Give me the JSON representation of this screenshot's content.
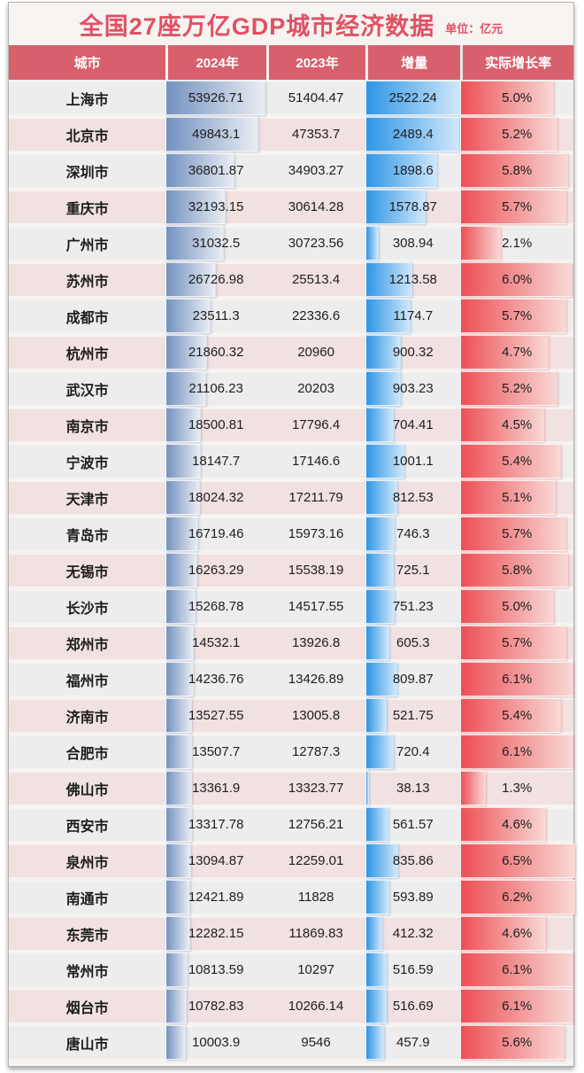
{
  "chart_data": {
    "type": "table",
    "title": "全国27座万亿GDP城市经济数据",
    "unit": "单位：亿元",
    "columns": [
      "城市",
      "2024年",
      "2023年",
      "增量",
      "实际增长率"
    ],
    "rows": [
      {
        "city": "上海市",
        "y2024": "53926.71",
        "y2023": "51404.47",
        "delta": "2522.24",
        "growth": "5.0%"
      },
      {
        "city": "北京市",
        "y2024": "49843.1",
        "y2023": "47353.7",
        "delta": "2489.4",
        "growth": "5.2%"
      },
      {
        "city": "深圳市",
        "y2024": "36801.87",
        "y2023": "34903.27",
        "delta": "1898.6",
        "growth": "5.8%"
      },
      {
        "city": "重庆市",
        "y2024": "32193.15",
        "y2023": "30614.28",
        "delta": "1578.87",
        "growth": "5.7%"
      },
      {
        "city": "广州市",
        "y2024": "31032.5",
        "y2023": "30723.56",
        "delta": "308.94",
        "growth": "2.1%"
      },
      {
        "city": "苏州市",
        "y2024": "26726.98",
        "y2023": "25513.4",
        "delta": "1213.58",
        "growth": "6.0%"
      },
      {
        "city": "成都市",
        "y2024": "23511.3",
        "y2023": "22336.6",
        "delta": "1174.7",
        "growth": "5.7%"
      },
      {
        "city": "杭州市",
        "y2024": "21860.32",
        "y2023": "20960",
        "delta": "900.32",
        "growth": "4.7%"
      },
      {
        "city": "武汉市",
        "y2024": "21106.23",
        "y2023": "20203",
        "delta": "903.23",
        "growth": "5.2%"
      },
      {
        "city": "南京市",
        "y2024": "18500.81",
        "y2023": "17796.4",
        "delta": "704.41",
        "growth": "4.5%"
      },
      {
        "city": "宁波市",
        "y2024": "18147.7",
        "y2023": "17146.6",
        "delta": "1001.1",
        "growth": "5.4%"
      },
      {
        "city": "天津市",
        "y2024": "18024.32",
        "y2023": "17211.79",
        "delta": "812.53",
        "growth": "5.1%"
      },
      {
        "city": "青岛市",
        "y2024": "16719.46",
        "y2023": "15973.16",
        "delta": "746.3",
        "growth": "5.7%"
      },
      {
        "city": "无锡市",
        "y2024": "16263.29",
        "y2023": "15538.19",
        "delta": "725.1",
        "growth": "5.8%"
      },
      {
        "city": "长沙市",
        "y2024": "15268.78",
        "y2023": "14517.55",
        "delta": "751.23",
        "growth": "5.0%"
      },
      {
        "city": "郑州市",
        "y2024": "14532.1",
        "y2023": "13926.8",
        "delta": "605.3",
        "growth": "5.7%"
      },
      {
        "city": "福州市",
        "y2024": "14236.76",
        "y2023": "13426.89",
        "delta": "809.87",
        "growth": "6.1%"
      },
      {
        "city": "济南市",
        "y2024": "13527.55",
        "y2023": "13005.8",
        "delta": "521.75",
        "growth": "5.4%"
      },
      {
        "city": "合肥市",
        "y2024": "13507.7",
        "y2023": "12787.3",
        "delta": "720.4",
        "growth": "6.1%"
      },
      {
        "city": "佛山市",
        "y2024": "13361.9",
        "y2023": "13323.77",
        "delta": "38.13",
        "growth": "1.3%"
      },
      {
        "city": "西安市",
        "y2024": "13317.78",
        "y2023": "12756.21",
        "delta": "561.57",
        "growth": "4.6%"
      },
      {
        "city": "泉州市",
        "y2024": "13094.87",
        "y2023": "12259.01",
        "delta": "835.86",
        "growth": "6.5%"
      },
      {
        "city": "南通市",
        "y2024": "12421.89",
        "y2023": "11828",
        "delta": "593.89",
        "growth": "6.2%"
      },
      {
        "city": "东莞市",
        "y2024": "12282.15",
        "y2023": "11869.83",
        "delta": "412.32",
        "growth": "4.6%"
      },
      {
        "city": "常州市",
        "y2024": "10813.59",
        "y2023": "10297",
        "delta": "516.59",
        "growth": "6.1%"
      },
      {
        "city": "烟台市",
        "y2024": "10782.83",
        "y2023": "10266.14",
        "delta": "516.69",
        "growth": "6.1%"
      },
      {
        "city": "唐山市",
        "y2024": "10003.9",
        "y2023": "9546",
        "delta": "457.9",
        "growth": "5.6%"
      }
    ],
    "bar_scales": {
      "max_2024": 53926.71,
      "max_2024_fill_pct": 97.5,
      "max_delta": 2522.24,
      "max_delta_fill_pct": 98,
      "growth_pct_per_unit": 16.2
    },
    "layout": {
      "grid": false,
      "legend": "none",
      "bars_inline_in_table": true
    }
  },
  "colors": {
    "title_red": "#e05163",
    "header_red": "#d8606c",
    "row_gray": "#ededed",
    "row_pink": "#f1e1e1",
    "bar_2024_start": "#7392c0",
    "bar_2024_end": "#eaedf2",
    "bar_delta_start": "#2e95e5",
    "bar_delta_end": "#cfe7fa",
    "bar_growth_start": "#ed4f55",
    "bar_growth_end": "#f8d8d5",
    "text_dark": "#1e1e1e"
  }
}
